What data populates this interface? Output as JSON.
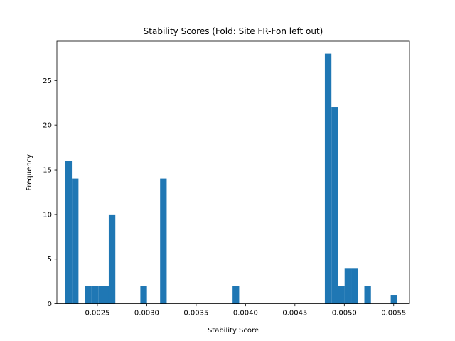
{
  "chart_data": {
    "type": "bar",
    "subtype": "histogram",
    "title": "Stability Scores (Fold: Site FR-Fon left out)",
    "xlabel": "Stability Score",
    "ylabel": "Frequency",
    "xlim": [
      0.00209,
      0.00566
    ],
    "ylim": [
      0,
      29.4
    ],
    "bin_width": 6.67e-05,
    "x_ticks": [
      0.0025,
      0.003,
      0.0035,
      0.004,
      0.0045,
      0.005,
      0.0055
    ],
    "x_tick_labels": [
      "0.0025",
      "0.0030",
      "0.0035",
      "0.0040",
      "0.0045",
      "0.0050",
      "0.0055"
    ],
    "y_ticks": [
      0,
      5,
      10,
      15,
      20,
      25
    ],
    "y_tick_labels": [
      "0",
      "5",
      "10",
      "15",
      "20",
      "25"
    ],
    "bar_color": "#1f77b4",
    "grid": false,
    "legend": "none",
    "bins": [
      {
        "x0": 0.002175,
        "count": 16
      },
      {
        "x0": 0.002242,
        "count": 14
      },
      {
        "x0": 0.002375,
        "count": 2
      },
      {
        "x0": 0.002442,
        "count": 2
      },
      {
        "x0": 0.002509,
        "count": 2
      },
      {
        "x0": 0.002575,
        "count": 2
      },
      {
        "x0": 0.002615,
        "count": 10
      },
      {
        "x0": 0.002935,
        "count": 2
      },
      {
        "x0": 0.003135,
        "count": 14
      },
      {
        "x0": 0.003869,
        "count": 2
      },
      {
        "x0": 0.004803,
        "count": 28
      },
      {
        "x0": 0.00487,
        "count": 22
      },
      {
        "x0": 0.004937,
        "count": 2
      },
      {
        "x0": 0.005003,
        "count": 4
      },
      {
        "x0": 0.00507,
        "count": 4
      },
      {
        "x0": 0.005203,
        "count": 2
      },
      {
        "x0": 0.00547,
        "count": 1
      }
    ]
  }
}
